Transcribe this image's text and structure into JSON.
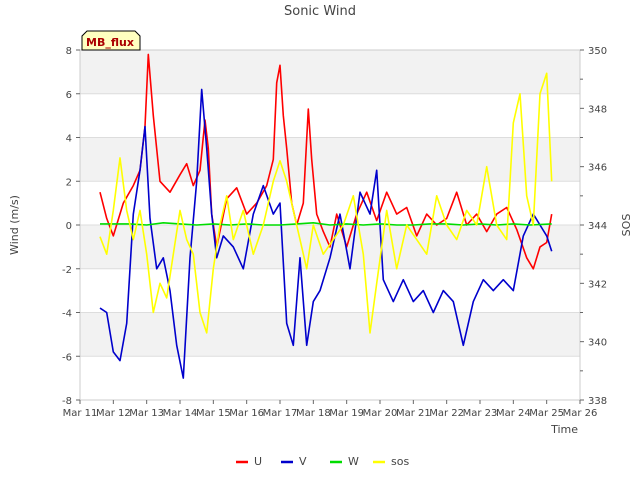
{
  "chart_data": {
    "type": "line",
    "title": "Sonic Wind",
    "xlabel": "Time",
    "ylabel": "Wind (m/s)",
    "y2label": "SOS",
    "badge": "MB_flux",
    "ylim": [
      -8,
      8
    ],
    "y2lim": [
      338,
      350
    ],
    "xlim": [
      11,
      26
    ],
    "x_ticks": [
      "Mar 11",
      "Mar 12",
      "Mar 13",
      "Mar 14",
      "Mar 15",
      "Mar 16",
      "Mar 17",
      "Mar 18",
      "Mar 19",
      "Mar 20",
      "Mar 21",
      "Mar 22",
      "Mar 23",
      "Mar 24",
      "Mar 25",
      "Mar 26"
    ],
    "y_ticks": [
      "-8",
      "-6",
      "-4",
      "-2",
      "0",
      "2",
      "4",
      "6",
      "8"
    ],
    "y2_ticks": [
      "338",
      "340",
      "342",
      "344",
      "346",
      "348",
      "350"
    ],
    "legend": [
      {
        "name": "U",
        "color": "#ff0000"
      },
      {
        "name": "V",
        "color": "#0000cc"
      },
      {
        "name": "W",
        "color": "#00dd00"
      },
      {
        "name": "sos",
        "color": "#ffff00"
      }
    ],
    "series": [
      {
        "name": "U",
        "axis": "left",
        "color": "#ff0000",
        "x": [
          11.6,
          11.8,
          12.0,
          12.3,
          12.6,
          12.8,
          12.95,
          13.05,
          13.2,
          13.4,
          13.7,
          14.0,
          14.2,
          14.4,
          14.6,
          14.75,
          14.85,
          14.95,
          15.1,
          15.4,
          15.7,
          16.0,
          16.3,
          16.6,
          16.8,
          16.9,
          17.0,
          17.1,
          17.2,
          17.35,
          17.5,
          17.7,
          17.85,
          17.95,
          18.1,
          18.3,
          18.5,
          18.7,
          19.0,
          19.3,
          19.6,
          19.9,
          20.2,
          20.5,
          20.8,
          21.1,
          21.4,
          21.7,
          22.0,
          22.3,
          22.6,
          22.9,
          23.2,
          23.5,
          23.8,
          24.1,
          24.4,
          24.6,
          24.8,
          25.0,
          25.15
        ],
        "y": [
          1.5,
          0.3,
          -0.5,
          1.0,
          1.8,
          2.5,
          4.5,
          7.8,
          5.0,
          2.0,
          1.5,
          2.3,
          2.8,
          1.8,
          2.5,
          4.8,
          3.5,
          0.5,
          -1.0,
          1.2,
          1.7,
          0.5,
          1.0,
          1.8,
          3.0,
          6.5,
          7.3,
          5.0,
          3.5,
          1.0,
          0.0,
          1.0,
          5.3,
          3.0,
          0.5,
          -0.3,
          -1.0,
          0.5,
          -1.0,
          0.5,
          1.5,
          0.2,
          1.5,
          0.5,
          0.8,
          -0.5,
          0.5,
          0.0,
          0.3,
          1.5,
          0.0,
          0.5,
          -0.3,
          0.5,
          0.8,
          -0.2,
          -1.5,
          -2.0,
          -1.0,
          -0.8,
          0.5
        ]
      },
      {
        "name": "V",
        "axis": "left",
        "color": "#0000cc",
        "x": [
          11.6,
          11.8,
          12.0,
          12.2,
          12.4,
          12.6,
          12.8,
          12.95,
          13.1,
          13.3,
          13.5,
          13.7,
          13.9,
          14.1,
          14.3,
          14.5,
          14.65,
          14.8,
          14.95,
          15.1,
          15.3,
          15.6,
          15.9,
          16.2,
          16.5,
          16.8,
          17.0,
          17.2,
          17.4,
          17.6,
          17.8,
          18.0,
          18.2,
          18.5,
          18.8,
          19.1,
          19.4,
          19.7,
          19.9,
          20.1,
          20.4,
          20.7,
          21.0,
          21.3,
          21.6,
          21.9,
          22.2,
          22.5,
          22.8,
          23.1,
          23.4,
          23.7,
          24.0,
          24.3,
          24.6,
          24.8,
          25.0,
          25.15
        ],
        "y": [
          -3.8,
          -4.0,
          -5.8,
          -6.2,
          -4.5,
          0.5,
          2.5,
          4.5,
          0.3,
          -2.0,
          -1.5,
          -3.0,
          -5.5,
          -7.0,
          -1.5,
          2.0,
          6.2,
          3.5,
          0.5,
          -1.5,
          -0.5,
          -1.0,
          -2.0,
          0.5,
          1.8,
          0.5,
          1.0,
          -4.5,
          -5.5,
          -1.5,
          -5.5,
          -3.5,
          -3.0,
          -1.5,
          0.5,
          -2.0,
          1.5,
          0.5,
          2.5,
          -2.5,
          -3.5,
          -2.5,
          -3.5,
          -3.0,
          -4.0,
          -3.0,
          -3.5,
          -5.5,
          -3.5,
          -2.5,
          -3.0,
          -2.5,
          -3.0,
          -0.5,
          0.5,
          0.0,
          -0.5,
          -1.2
        ]
      },
      {
        "name": "W",
        "axis": "left",
        "color": "#00dd00",
        "x": [
          11.6,
          12.5,
          13.0,
          13.5,
          14.0,
          14.5,
          15.0,
          15.5,
          16.0,
          16.5,
          17.0,
          17.5,
          18.0,
          18.5,
          19.0,
          19.5,
          20.0,
          20.5,
          21.0,
          21.5,
          22.0,
          22.5,
          23.0,
          23.5,
          24.0,
          24.5,
          25.15
        ],
        "y": [
          0.05,
          0.05,
          0.0,
          0.1,
          0.05,
          0.0,
          0.05,
          0.0,
          0.05,
          0.0,
          0.0,
          0.05,
          0.1,
          0.0,
          0.05,
          0.0,
          0.05,
          0.0,
          0.0,
          0.05,
          0.05,
          0.0,
          0.05,
          0.0,
          0.05,
          0.0,
          0.05
        ]
      },
      {
        "name": "sos",
        "axis": "right",
        "color": "#ffff00",
        "x": [
          11.6,
          11.8,
          12.0,
          12.2,
          12.4,
          12.6,
          12.8,
          13.0,
          13.2,
          13.4,
          13.6,
          13.8,
          14.0,
          14.2,
          14.4,
          14.6,
          14.8,
          15.0,
          15.2,
          15.4,
          15.6,
          15.9,
          16.2,
          16.5,
          16.8,
          17.0,
          17.2,
          17.4,
          17.6,
          17.8,
          18.0,
          18.3,
          18.6,
          18.9,
          19.2,
          19.5,
          19.7,
          19.9,
          20.2,
          20.5,
          20.8,
          21.1,
          21.4,
          21.7,
          22.0,
          22.3,
          22.6,
          22.9,
          23.2,
          23.5,
          23.8,
          24.0,
          24.2,
          24.4,
          24.6,
          24.8,
          25.0,
          25.15
        ],
        "y": [
          343.6,
          343.0,
          344.5,
          346.3,
          344.5,
          343.5,
          344.5,
          343.0,
          341.0,
          342.0,
          341.5,
          343.0,
          344.5,
          343.5,
          343.0,
          341.0,
          340.3,
          342.5,
          344.0,
          345.0,
          343.5,
          344.5,
          343.0,
          344.0,
          345.5,
          346.2,
          345.5,
          344.5,
          343.5,
          342.5,
          344.0,
          343.0,
          343.5,
          344.0,
          345.0,
          343.0,
          340.3,
          342.0,
          344.5,
          342.5,
          344.0,
          343.5,
          343.0,
          345.0,
          344.0,
          343.5,
          344.5,
          344.0,
          346.0,
          344.0,
          343.5,
          347.5,
          348.5,
          345.0,
          344.0,
          348.5,
          349.2,
          345.5
        ]
      }
    ]
  }
}
